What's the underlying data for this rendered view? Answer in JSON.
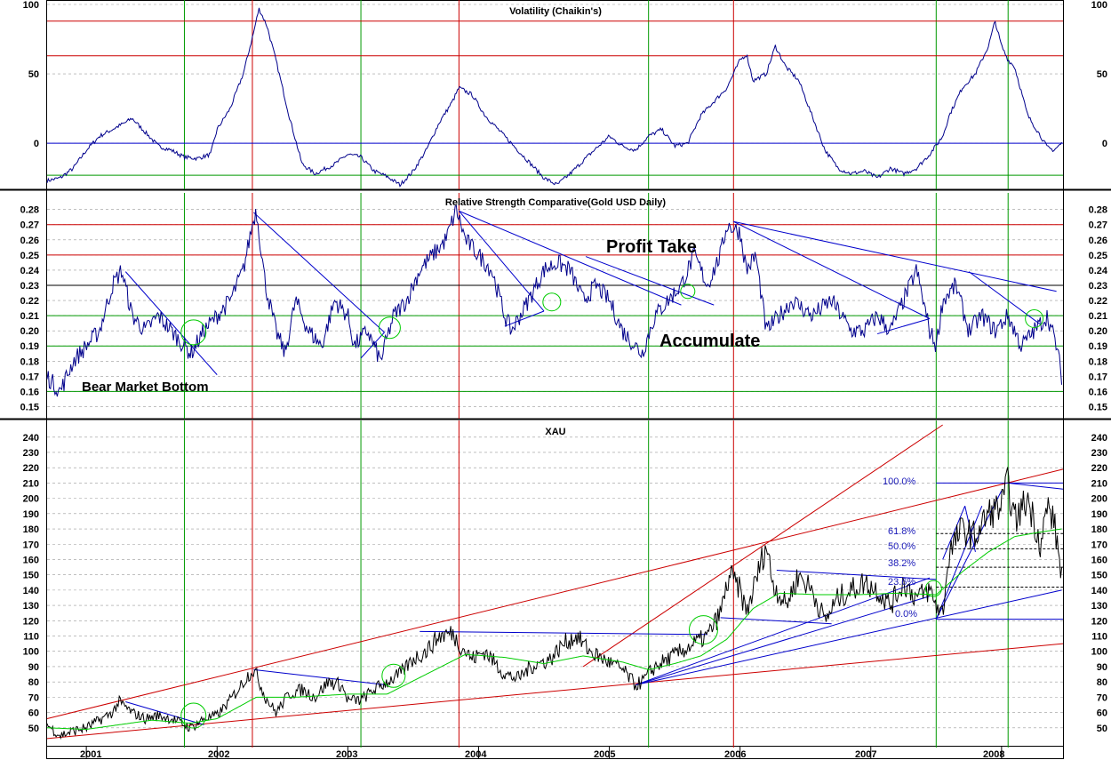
{
  "chart_data": [
    {
      "id": "volatility",
      "type": "line",
      "title": "Volatility (Chaikin's)",
      "ylim": [
        -30,
        100
      ],
      "yticks": [
        0,
        50,
        100
      ],
      "grid": true,
      "series": [
        {
          "x": [
            2000.7,
            2000.8,
            2000.9,
            2001.0,
            2001.1,
            2001.2,
            2001.3,
            2001.35,
            2001.45,
            2001.55,
            2001.65,
            2001.75,
            2001.85,
            2001.95,
            2002.0,
            2002.1,
            2002.2,
            2002.28,
            2002.32,
            2002.38,
            2002.45,
            2002.55,
            2002.65,
            2002.75,
            2002.9,
            2003.0,
            2003.1,
            2003.2,
            2003.3,
            2003.4,
            2003.5,
            2003.6,
            2003.7,
            2003.8,
            2003.85,
            2003.95,
            2004.05,
            2004.2,
            2004.35,
            2004.5,
            2004.6,
            2004.7,
            2004.85,
            2005.0,
            2005.1,
            2005.2,
            2005.3,
            2005.4,
            2005.5,
            2005.6,
            2005.7,
            2005.8,
            2005.9,
            2006.0,
            2006.05,
            2006.1,
            2006.2,
            2006.27,
            2006.35,
            2006.45,
            2006.55,
            2006.65,
            2006.75,
            2006.85,
            2006.95,
            2007.05,
            2007.15,
            2007.25,
            2007.35,
            2007.45,
            2007.55,
            2007.6,
            2007.7,
            2007.8,
            2007.9,
            2007.95,
            2008.0,
            2008.05,
            2008.1,
            2008.2,
            2008.3,
            2008.35,
            2008.4,
            2008.46
          ],
          "y": [
            -27,
            -25,
            -18,
            -5,
            5,
            10,
            15,
            18,
            8,
            -2,
            -5,
            -10,
            -11,
            -8,
            10,
            25,
            50,
            80,
            97,
            85,
            60,
            20,
            -15,
            -22,
            -15,
            -8,
            -10,
            -20,
            -24,
            -30,
            -20,
            -5,
            15,
            30,
            40,
            35,
            20,
            5,
            -10,
            -25,
            -30,
            -22,
            -8,
            5,
            -2,
            -5,
            5,
            10,
            -2,
            0,
            20,
            30,
            40,
            60,
            64,
            45,
            50,
            70,
            55,
            45,
            20,
            -5,
            -18,
            -22,
            -20,
            -25,
            -18,
            -22,
            -18,
            -8,
            5,
            20,
            40,
            50,
            70,
            88,
            70,
            60,
            55,
            20,
            5,
            -3,
            -5,
            0
          ]
        }
      ],
      "hlines": [
        {
          "y": 88,
          "color": "#cc0000"
        },
        {
          "y": 63,
          "color": "#cc0000"
        },
        {
          "y": 0,
          "color": "#0000cc"
        },
        {
          "y": -23,
          "color": "#009900"
        }
      ]
    },
    {
      "id": "rsc",
      "type": "line",
      "title": "Relative Strength Comparative(Gold USD Daily)",
      "ylim": [
        0.145,
        0.288
      ],
      "yticks": [
        0.15,
        0.16,
        0.17,
        0.18,
        0.19,
        0.2,
        0.21,
        0.22,
        0.23,
        0.24,
        0.25,
        0.26,
        0.27,
        0.28
      ],
      "grid": true,
      "series": [
        {
          "x": [
            2000.7,
            2000.8,
            2000.9,
            2001.0,
            2001.1,
            2001.2,
            2001.27,
            2001.35,
            2001.45,
            2001.55,
            2001.65,
            2001.75,
            2001.8,
            2001.9,
            2002.0,
            2002.1,
            2002.2,
            2002.27,
            2002.3,
            2002.37,
            2002.45,
            2002.52,
            2002.6,
            2002.7,
            2002.8,
            2002.9,
            2003.0,
            2003.05,
            2003.15,
            2003.25,
            2003.35,
            2003.45,
            2003.55,
            2003.65,
            2003.75,
            2003.83,
            2003.9,
            2004.0,
            2004.1,
            2004.2,
            2004.25,
            2004.35,
            2004.5,
            2004.6,
            2004.7,
            2004.8,
            2004.9,
            2005.0,
            2005.1,
            2005.2,
            2005.25,
            2005.35,
            2005.45,
            2005.55,
            2005.65,
            2005.75,
            2005.85,
            2005.9,
            2006.0,
            2006.05,
            2006.12,
            2006.2,
            2006.3,
            2006.4,
            2006.55,
            2006.7,
            2006.85,
            2006.95,
            2007.05,
            2007.15,
            2007.25,
            2007.35,
            2007.45,
            2007.5,
            2007.55,
            2007.65,
            2007.75,
            2007.85,
            2007.95,
            2008.05,
            2008.15,
            2008.25,
            2008.35,
            2008.42,
            2008.46
          ],
          "y": [
            0.17,
            0.16,
            0.18,
            0.19,
            0.2,
            0.23,
            0.24,
            0.21,
            0.2,
            0.21,
            0.2,
            0.19,
            0.185,
            0.2,
            0.21,
            0.22,
            0.24,
            0.27,
            0.28,
            0.23,
            0.2,
            0.185,
            0.22,
            0.2,
            0.19,
            0.22,
            0.21,
            0.19,
            0.2,
            0.18,
            0.21,
            0.22,
            0.24,
            0.25,
            0.26,
            0.28,
            0.26,
            0.25,
            0.24,
            0.21,
            0.2,
            0.215,
            0.24,
            0.245,
            0.24,
            0.22,
            0.23,
            0.22,
            0.2,
            0.19,
            0.185,
            0.21,
            0.22,
            0.23,
            0.25,
            0.23,
            0.25,
            0.27,
            0.265,
            0.24,
            0.25,
            0.2,
            0.21,
            0.22,
            0.21,
            0.22,
            0.2,
            0.2,
            0.21,
            0.2,
            0.22,
            0.24,
            0.2,
            0.19,
            0.22,
            0.23,
            0.2,
            0.21,
            0.2,
            0.21,
            0.19,
            0.2,
            0.21,
            0.19,
            0.17
          ]
        }
      ],
      "hlines": [
        {
          "y": 0.27,
          "color": "#cc0000"
        },
        {
          "y": 0.25,
          "color": "#cc0000"
        },
        {
          "y": 0.23,
          "color": "#000000"
        },
        {
          "y": 0.21,
          "color": "#009900"
        },
        {
          "y": 0.19,
          "color": "#009900"
        },
        {
          "y": 0.16,
          "color": "#009900"
        }
      ],
      "annotations": [
        "Profit Take",
        "Accumulate",
        "Bear Market Bottom"
      ]
    },
    {
      "id": "xau",
      "type": "line",
      "title": "XAU",
      "ylim": [
        40,
        248
      ],
      "yticks": [
        50,
        60,
        70,
        80,
        90,
        100,
        110,
        120,
        130,
        140,
        150,
        160,
        170,
        180,
        190,
        200,
        210,
        220,
        230,
        240
      ],
      "grid": true,
      "series": [
        {
          "name": "price",
          "color": "#000000",
          "x": [
            2000.7,
            2000.8,
            2000.9,
            2001.0,
            2001.1,
            2001.2,
            2001.25,
            2001.35,
            2001.45,
            2001.55,
            2001.65,
            2001.75,
            2001.8,
            2001.9,
            2002.0,
            2002.1,
            2002.2,
            2002.27,
            2002.3,
            2002.37,
            2002.45,
            2002.55,
            2002.65,
            2002.75,
            2002.85,
            2002.95,
            2003.0,
            2003.1,
            2003.2,
            2003.3,
            2003.4,
            2003.5,
            2003.6,
            2003.7,
            2003.8,
            2003.85,
            2003.95,
            2004.05,
            2004.2,
            2004.3,
            2004.4,
            2004.55,
            2004.65,
            2004.75,
            2004.85,
            2004.95,
            2005.1,
            2005.2,
            2005.25,
            2005.35,
            2005.45,
            2005.55,
            2005.65,
            2005.75,
            2005.85,
            2005.92,
            2006.0,
            2006.05,
            2006.1,
            2006.2,
            2006.25,
            2006.35,
            2006.45,
            2006.55,
            2006.65,
            2006.75,
            2006.85,
            2006.95,
            2007.05,
            2007.15,
            2007.25,
            2007.35,
            2007.45,
            2007.5,
            2007.55,
            2007.6,
            2007.7,
            2007.8,
            2007.9,
            2008.0,
            2008.05,
            2008.1,
            2008.2,
            2008.3,
            2008.35,
            2008.4,
            2008.46
          ],
          "y": [
            52,
            45,
            48,
            50,
            55,
            60,
            67,
            60,
            56,
            58,
            56,
            52,
            50,
            56,
            58,
            68,
            80,
            88,
            85,
            70,
            60,
            72,
            75,
            70,
            80,
            78,
            68,
            68,
            75,
            80,
            85,
            95,
            100,
            110,
            112,
            105,
            95,
            100,
            85,
            82,
            90,
            95,
            105,
            110,
            100,
            95,
            88,
            78,
            80,
            90,
            95,
            100,
            105,
            110,
            125,
            150,
            140,
            125,
            140,
            170,
            145,
            130,
            150,
            140,
            120,
            135,
            140,
            145,
            140,
            130,
            145,
            135,
            140,
            130,
            125,
            165,
            180,
            175,
            190,
            195,
            210,
            185,
            200,
            170,
            195,
            185,
            150
          ]
        },
        {
          "name": "moving average",
          "color": "#00cc00",
          "x": [
            2000.7,
            2001.0,
            2001.5,
            2001.8,
            2002.0,
            2002.3,
            2002.6,
            2003.0,
            2003.3,
            2003.6,
            2003.9,
            2004.2,
            2004.5,
            2004.8,
            2005.1,
            2005.3,
            2005.5,
            2005.7,
            2005.9,
            2006.1,
            2006.3,
            2006.6,
            2006.9,
            2007.2,
            2007.5,
            2007.7,
            2007.9,
            2008.1,
            2008.3,
            2008.46
          ],
          "y": [
            50,
            49,
            55,
            53,
            56,
            70,
            70,
            72,
            72,
            85,
            98,
            96,
            92,
            97,
            93,
            88,
            92,
            97,
            108,
            128,
            138,
            137,
            137,
            138,
            137,
            152,
            165,
            175,
            178,
            180
          ]
        }
      ],
      "trendlines_red": 3,
      "trendlines_blue": 9,
      "fib_levels": [
        "100.0%",
        "61.8%",
        "50.0%",
        "38.2%",
        "23.6%",
        "0.0%"
      ],
      "fib_values": [
        210,
        177,
        167,
        155,
        142,
        121
      ]
    }
  ],
  "x_axis": {
    "labels": [
      "2001",
      "2002",
      "2003",
      "2004",
      "2005",
      "2006",
      "2007",
      "2008"
    ],
    "xlim": [
      2000.7,
      2008.47
    ]
  },
  "vertical_lines": {
    "red_years": [
      2002.27,
      2003.85,
      2005.95
    ],
    "green_years": [
      2001.75,
      2003.1,
      2005.3,
      2007.5,
      2008.05
    ]
  },
  "colors": {
    "price": "#000000",
    "volatility": "#00008b",
    "ma": "#00cc00",
    "red": "#cc0000",
    "green": "#009900",
    "blue": "#0000cc",
    "grid": "#999999"
  }
}
